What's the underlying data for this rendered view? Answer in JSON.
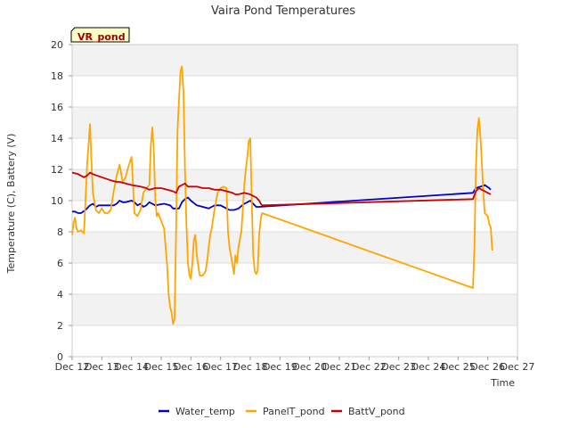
{
  "chart_data": {
    "type": "line",
    "title": "Vaira Pond Temperatures",
    "xlabel": "Time",
    "ylabel": "Temperature (C), Battery (V)",
    "station_label": "VR_pond",
    "xlim": [
      12,
      27
    ],
    "ylim": [
      0,
      20
    ],
    "x_ticks": [
      12,
      13,
      14,
      15,
      16,
      17,
      18,
      19,
      20,
      21,
      22,
      23,
      24,
      25,
      26,
      27
    ],
    "x_tick_labels": [
      "Dec 12",
      "Dec 13",
      "Dec 14",
      "Dec 15",
      "Dec 16",
      "Dec 17",
      "Dec 18",
      "Dec 19",
      "Dec 20",
      "Dec 21",
      "Dec 22",
      "Dec 23",
      "Dec 24",
      "Dec 25",
      "Dec 26",
      "Dec 27"
    ],
    "y_ticks": [
      0,
      2,
      4,
      6,
      8,
      10,
      12,
      14,
      16,
      18,
      20
    ],
    "y_tick_labels": [
      "0",
      "2",
      "4",
      "6",
      "8",
      "10",
      "12",
      "14",
      "16",
      "18",
      "20"
    ],
    "grid": true,
    "banded_background": true,
    "legend_position": "bottom-center",
    "series": [
      {
        "name": "Water_temp",
        "color": "#0000cc",
        "points": [
          [
            12.0,
            9.3
          ],
          [
            12.1,
            9.3
          ],
          [
            12.2,
            9.2
          ],
          [
            12.3,
            9.2
          ],
          [
            12.45,
            9.4
          ],
          [
            12.6,
            9.7
          ],
          [
            12.7,
            9.8
          ],
          [
            12.8,
            9.6
          ],
          [
            12.9,
            9.7
          ],
          [
            13.2,
            9.7
          ],
          [
            13.4,
            9.7
          ],
          [
            13.5,
            9.8
          ],
          [
            13.6,
            10.0
          ],
          [
            13.7,
            9.9
          ],
          [
            13.8,
            9.9
          ],
          [
            14.0,
            10.0
          ],
          [
            14.1,
            9.9
          ],
          [
            14.2,
            9.7
          ],
          [
            14.3,
            9.8
          ],
          [
            14.4,
            9.6
          ],
          [
            14.5,
            9.7
          ],
          [
            14.6,
            9.9
          ],
          [
            14.7,
            9.8
          ],
          [
            14.8,
            9.7
          ],
          [
            15.1,
            9.8
          ],
          [
            15.3,
            9.7
          ],
          [
            15.4,
            9.5
          ],
          [
            15.6,
            9.5
          ],
          [
            15.7,
            9.9
          ],
          [
            15.8,
            10.1
          ],
          [
            15.9,
            10.2
          ],
          [
            16.0,
            10.0
          ],
          [
            16.2,
            9.7
          ],
          [
            16.4,
            9.6
          ],
          [
            16.6,
            9.5
          ],
          [
            16.7,
            9.6
          ],
          [
            16.8,
            9.7
          ],
          [
            17.0,
            9.7
          ],
          [
            17.2,
            9.5
          ],
          [
            17.3,
            9.4
          ],
          [
            17.45,
            9.4
          ],
          [
            17.6,
            9.5
          ],
          [
            17.8,
            9.8
          ],
          [
            17.9,
            9.9
          ],
          [
            18.0,
            10.0
          ],
          [
            18.1,
            9.8
          ],
          [
            18.2,
            9.6
          ],
          [
            18.3,
            9.6
          ],
          [
            25.5,
            10.5
          ],
          [
            25.6,
            10.8
          ],
          [
            25.75,
            10.9
          ],
          [
            25.9,
            11.0
          ],
          [
            26.05,
            10.8
          ],
          [
            26.1,
            10.7
          ]
        ]
      },
      {
        "name": "PanelT_pond",
        "color": "#ffa500",
        "points": [
          [
            12.0,
            7.8
          ],
          [
            12.05,
            8.6
          ],
          [
            12.1,
            8.9
          ],
          [
            12.15,
            8.2
          ],
          [
            12.2,
            8.0
          ],
          [
            12.3,
            8.1
          ],
          [
            12.4,
            7.9
          ],
          [
            12.45,
            10.0
          ],
          [
            12.5,
            12.2
          ],
          [
            12.6,
            14.9
          ],
          [
            12.65,
            12.5
          ],
          [
            12.7,
            10.5
          ],
          [
            12.8,
            9.4
          ],
          [
            12.9,
            9.2
          ],
          [
            13.0,
            9.5
          ],
          [
            13.1,
            9.2
          ],
          [
            13.2,
            9.2
          ],
          [
            13.3,
            9.4
          ],
          [
            13.4,
            10.6
          ],
          [
            13.5,
            11.6
          ],
          [
            13.6,
            12.3
          ],
          [
            13.7,
            11.2
          ],
          [
            13.8,
            11.5
          ],
          [
            13.9,
            12.2
          ],
          [
            14.0,
            12.8
          ],
          [
            14.1,
            9.2
          ],
          [
            14.2,
            9.0
          ],
          [
            14.3,
            9.4
          ],
          [
            14.4,
            10.5
          ],
          [
            14.5,
            10.8
          ],
          [
            14.6,
            11.0
          ],
          [
            14.65,
            13.5
          ],
          [
            14.7,
            14.7
          ],
          [
            14.75,
            13.2
          ],
          [
            14.8,
            10.2
          ],
          [
            14.85,
            9.0
          ],
          [
            14.9,
            9.2
          ],
          [
            15.0,
            8.7
          ],
          [
            15.1,
            8.2
          ],
          [
            15.2,
            5.8
          ],
          [
            15.25,
            4.0
          ],
          [
            15.3,
            3.2
          ],
          [
            15.35,
            2.8
          ],
          [
            15.4,
            2.1
          ],
          [
            15.45,
            2.4
          ],
          [
            15.5,
            8.0
          ],
          [
            15.55,
            14.5
          ],
          [
            15.6,
            16.5
          ],
          [
            15.65,
            18.3
          ],
          [
            15.7,
            18.6
          ],
          [
            15.75,
            17.0
          ],
          [
            15.8,
            12.0
          ],
          [
            15.85,
            8.5
          ],
          [
            15.9,
            6.0
          ],
          [
            15.95,
            5.2
          ],
          [
            16.0,
            5.0
          ],
          [
            16.05,
            6.0
          ],
          [
            16.1,
            7.5
          ],
          [
            16.15,
            7.8
          ],
          [
            16.2,
            6.5
          ],
          [
            16.25,
            5.8
          ],
          [
            16.3,
            5.2
          ],
          [
            16.4,
            5.2
          ],
          [
            16.5,
            5.5
          ],
          [
            16.55,
            6.2
          ],
          [
            16.6,
            7.0
          ],
          [
            16.65,
            7.8
          ],
          [
            16.7,
            8.2
          ],
          [
            16.8,
            9.5
          ],
          [
            16.85,
            10.0
          ],
          [
            16.9,
            10.5
          ],
          [
            17.0,
            10.8
          ],
          [
            17.1,
            10.9
          ],
          [
            17.2,
            10.8
          ],
          [
            17.25,
            8.0
          ],
          [
            17.3,
            7.0
          ],
          [
            17.35,
            6.5
          ],
          [
            17.4,
            5.9
          ],
          [
            17.45,
            5.3
          ],
          [
            17.5,
            6.5
          ],
          [
            17.55,
            6.0
          ],
          [
            17.6,
            7.0
          ],
          [
            17.65,
            7.5
          ],
          [
            17.7,
            8.0
          ],
          [
            17.75,
            9.5
          ],
          [
            17.8,
            11.0
          ],
          [
            17.85,
            12.0
          ],
          [
            17.9,
            12.8
          ],
          [
            17.95,
            13.8
          ],
          [
            18.0,
            14.0
          ],
          [
            18.05,
            10.0
          ],
          [
            18.1,
            6.5
          ],
          [
            18.15,
            5.5
          ],
          [
            18.2,
            5.3
          ],
          [
            18.25,
            5.5
          ],
          [
            18.3,
            7.8
          ],
          [
            18.35,
            8.8
          ],
          [
            18.4,
            9.2
          ],
          [
            25.5,
            4.4
          ],
          [
            25.55,
            7.0
          ],
          [
            25.6,
            12.0
          ],
          [
            25.65,
            14.5
          ],
          [
            25.7,
            15.3
          ],
          [
            25.75,
            14.2
          ],
          [
            25.8,
            12.5
          ],
          [
            25.85,
            10.5
          ],
          [
            25.9,
            9.2
          ],
          [
            26.0,
            9.0
          ],
          [
            26.05,
            8.5
          ],
          [
            26.1,
            8.3
          ],
          [
            26.15,
            6.8
          ]
        ]
      },
      {
        "name": "BattV_pond",
        "color": "#cc0000",
        "points": [
          [
            12.0,
            11.8
          ],
          [
            12.2,
            11.7
          ],
          [
            12.4,
            11.5
          ],
          [
            12.5,
            11.6
          ],
          [
            12.6,
            11.8
          ],
          [
            12.7,
            11.7
          ],
          [
            13.0,
            11.5
          ],
          [
            13.3,
            11.3
          ],
          [
            13.5,
            11.2
          ],
          [
            13.6,
            11.2
          ],
          [
            13.8,
            11.1
          ],
          [
            14.0,
            11.0
          ],
          [
            14.3,
            10.9
          ],
          [
            14.5,
            10.8
          ],
          [
            14.6,
            10.7
          ],
          [
            14.8,
            10.8
          ],
          [
            15.0,
            10.8
          ],
          [
            15.2,
            10.7
          ],
          [
            15.4,
            10.6
          ],
          [
            15.5,
            10.5
          ],
          [
            15.6,
            10.9
          ],
          [
            15.7,
            11.0
          ],
          [
            15.8,
            11.1
          ],
          [
            15.9,
            10.9
          ],
          [
            16.0,
            10.9
          ],
          [
            16.2,
            10.9
          ],
          [
            16.4,
            10.8
          ],
          [
            16.6,
            10.8
          ],
          [
            16.8,
            10.7
          ],
          [
            17.0,
            10.7
          ],
          [
            17.2,
            10.6
          ],
          [
            17.4,
            10.5
          ],
          [
            17.5,
            10.4
          ],
          [
            17.6,
            10.4
          ],
          [
            17.8,
            10.5
          ],
          [
            18.0,
            10.4
          ],
          [
            18.1,
            10.3
          ],
          [
            18.2,
            10.2
          ],
          [
            18.3,
            10.0
          ],
          [
            18.35,
            9.8
          ],
          [
            18.4,
            9.7
          ],
          [
            25.5,
            10.1
          ],
          [
            25.6,
            10.6
          ],
          [
            25.7,
            10.8
          ],
          [
            25.8,
            10.7
          ],
          [
            25.9,
            10.6
          ],
          [
            26.0,
            10.5
          ],
          [
            26.1,
            10.4
          ]
        ]
      }
    ]
  }
}
